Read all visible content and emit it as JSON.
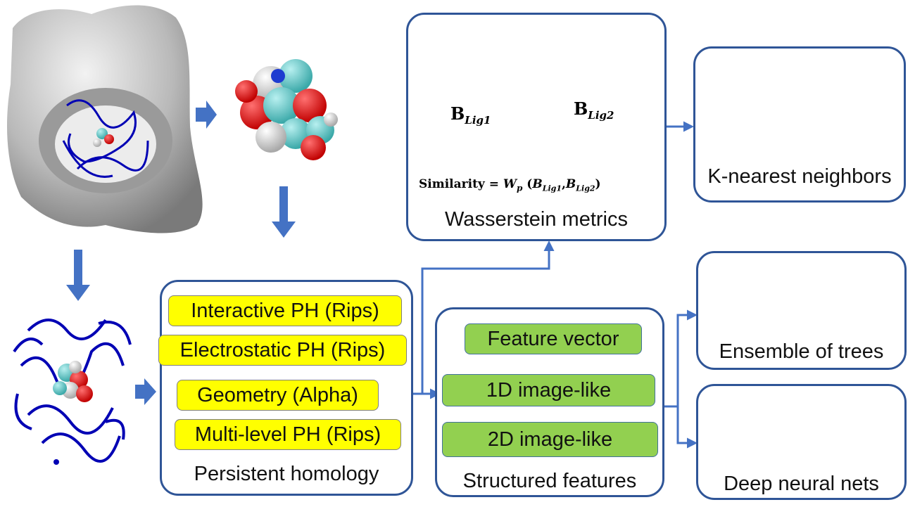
{
  "colors": {
    "panel_border": "#2f5597",
    "arrow": "#4472c4",
    "yellow_box": "#ffff00",
    "green_box": "#92d050",
    "protein_surface": "#c0c0c0",
    "protein_ribbon": "#0000b4",
    "knn_red": "#e00000",
    "knn_purple": "#7030a0",
    "knn_cyan": "#00b0f0",
    "knn_query": "#4472c4",
    "knn_arrow": "#ffc000"
  },
  "persistent_homology": {
    "items": [
      "Interactive PH (Rips)",
      "Electrostatic PH (Rips)",
      "Geometry (Alpha)",
      "Multi-level PH (Rips)"
    ],
    "caption": "Persistent homology"
  },
  "structured_features": {
    "items": [
      "Feature vector",
      "1D image-like",
      "2D image-like"
    ],
    "caption": "Structured features"
  },
  "wasserstein": {
    "b1_main": "B",
    "b1_sub": "Lig1",
    "b2_main": "B",
    "b2_sub": "Lig2",
    "formula_lhs": "Similarity = ",
    "formula_w": "W",
    "formula_p": "p",
    "formula_args_open": " (",
    "formula_b1": "B",
    "formula_s1": "Lig1",
    "formula_comma": ",",
    "formula_b2": "B",
    "formula_s2": "Lig2",
    "formula_close": ")",
    "caption": "Wasserstein metrics"
  },
  "knn": {
    "query_mark": "?",
    "caption": "K-nearest neighbors"
  },
  "trees": {
    "caption": "Ensemble of trees"
  },
  "dnn": {
    "caption": "Deep neural nets"
  }
}
